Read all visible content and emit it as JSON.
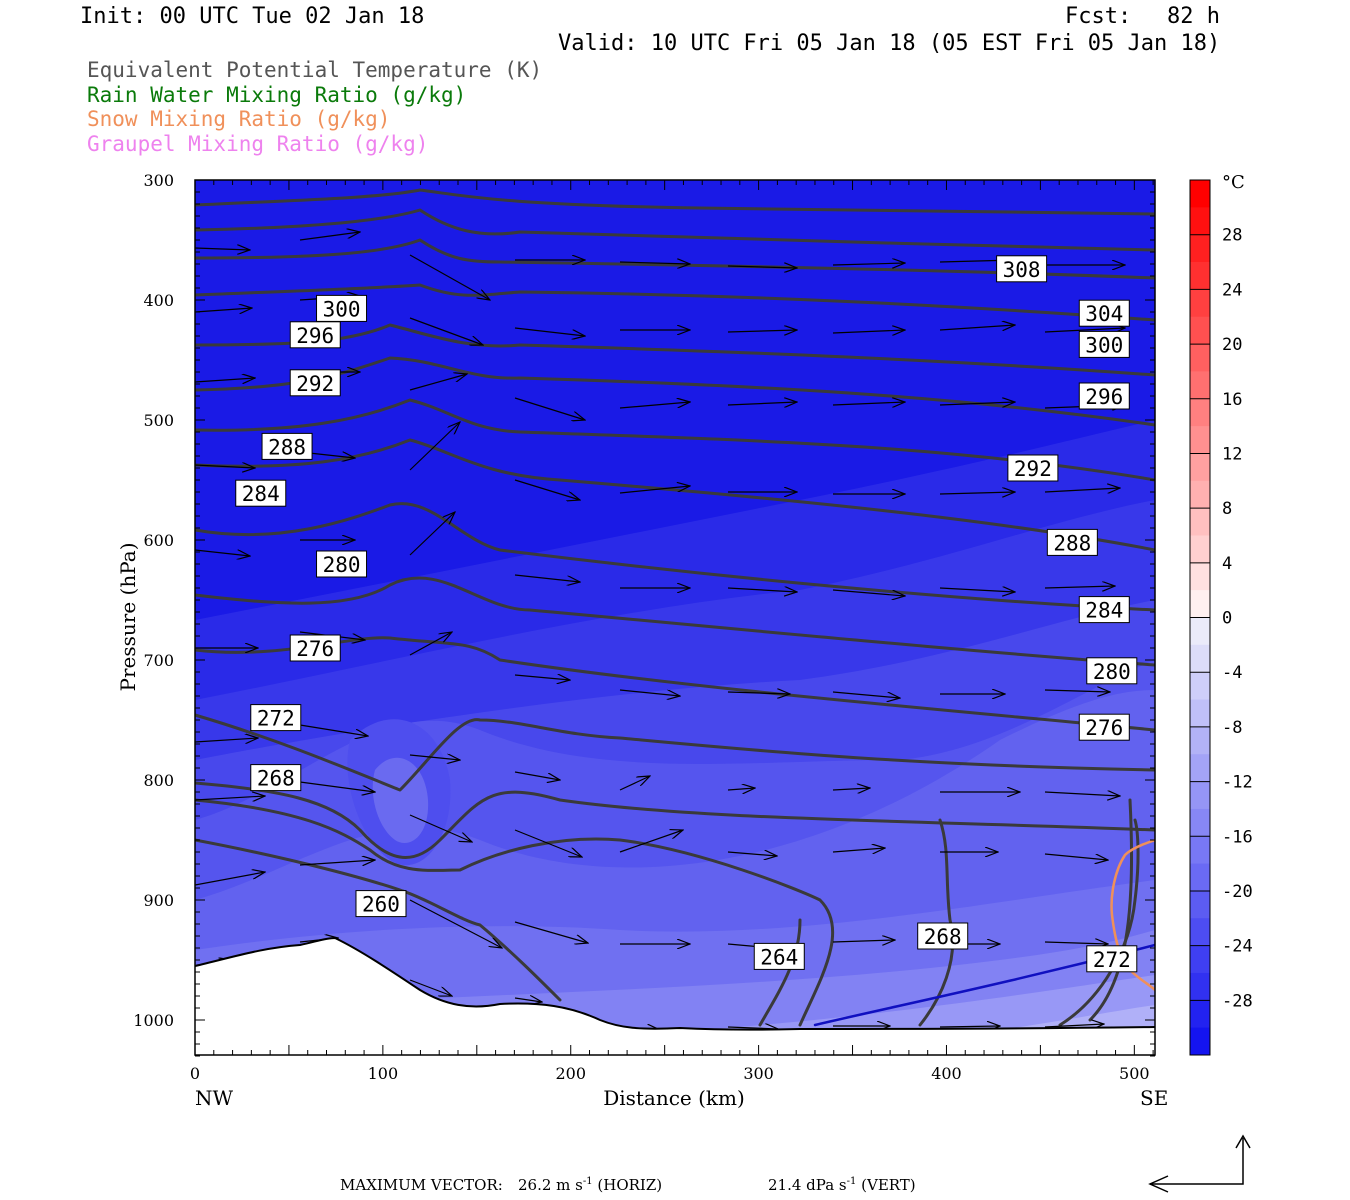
{
  "header": {
    "init": "Init: 00 UTC Tue 02 Jan 18",
    "fcst_label": "Fcst:",
    "fcst_value": "82 h",
    "valid": "Valid: 10 UTC Fri 05 Jan 18 (05 EST Fri 05 Jan 18)"
  },
  "legend": [
    {
      "label": "Equivalent Potential Temperature (K)",
      "color": "#555555"
    },
    {
      "label": "Rain Water Mixing Ratio (g/kg)",
      "color": "#0a7a0a"
    },
    {
      "label": "Snow Mixing Ratio (g/kg)",
      "color": "#f0905a"
    },
    {
      "label": "Graupel Mixing Ratio (g/kg)",
      "color": "#ee82ee"
    }
  ],
  "chart_data": {
    "type": "cross-section",
    "xlabel": "Distance (km)",
    "ylabel": "Pressure (hPa)",
    "xlim": [
      0,
      511
    ],
    "ylim": [
      1030,
      300
    ],
    "x_ticks": [
      0,
      100,
      200,
      300,
      400,
      500
    ],
    "y_ticks": [
      300,
      400,
      500,
      600,
      700,
      800,
      900,
      1000
    ],
    "x_end_labels": {
      "left": "NW",
      "right": "SE"
    },
    "colorbar": {
      "unit": "°C",
      "ticks": [
        28,
        24,
        20,
        16,
        12,
        8,
        4,
        0,
        -4,
        -8,
        -12,
        -16,
        -20,
        -24,
        -28
      ],
      "range": [
        -32,
        32
      ]
    },
    "theta_e_contours": [
      {
        "value": 308,
        "label_pos": [
          440,
          374
        ]
      },
      {
        "value": 304,
        "label_pos": [
          484,
          411
        ]
      },
      {
        "value": 300,
        "label_pos": [
          78,
          407
        ]
      },
      {
        "value": 300,
        "label_pos": [
          484,
          437
        ]
      },
      {
        "value": 296,
        "label_pos": [
          64,
          429
        ]
      },
      {
        "value": 296,
        "label_pos": [
          484,
          480
        ]
      },
      {
        "value": 292,
        "label_pos": [
          64,
          469
        ]
      },
      {
        "value": 292,
        "label_pos": [
          446,
          540
        ]
      },
      {
        "value": 288,
        "label_pos": [
          49,
          522
        ]
      },
      {
        "value": 288,
        "label_pos": [
          467,
          602
        ]
      },
      {
        "value": 284,
        "label_pos": [
          35,
          561
        ]
      },
      {
        "value": 284,
        "label_pos": [
          484,
          658
        ]
      },
      {
        "value": 280,
        "label_pos": [
          78,
          620
        ]
      },
      {
        "value": 280,
        "label_pos": [
          488,
          709
        ]
      },
      {
        "value": 276,
        "label_pos": [
          64,
          690
        ]
      },
      {
        "value": 276,
        "label_pos": [
          484,
          756
        ]
      },
      {
        "value": 272,
        "label_pos": [
          43,
          748
        ]
      },
      {
        "value": 268,
        "label_pos": [
          43,
          798
        ]
      },
      {
        "value": 268,
        "label_pos": [
          398,
          930
        ]
      },
      {
        "value": 264,
        "label_pos": [
          311,
          947
        ]
      },
      {
        "value": 260,
        "label_pos": [
          99,
          903
        ]
      },
      {
        "value": 272,
        "label_pos": [
          488,
          949
        ]
      }
    ]
  },
  "footer": {
    "max_vector_label": "MAXIMUM VECTOR:",
    "horiz_value": "26.2 m s",
    "horiz_exp": "-1",
    "horiz_unit": "(HORIZ)",
    "vert_value": "21.4 dPa s",
    "vert_exp": "-1",
    "vert_unit": "(VERT)"
  }
}
